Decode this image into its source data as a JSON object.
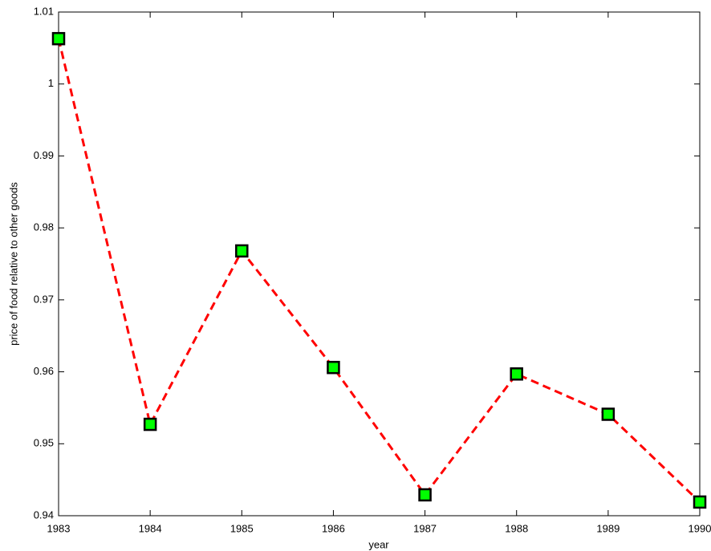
{
  "chart_data": {
    "type": "line",
    "xlabel": "year",
    "ylabel": "price of food relative to other goods",
    "x": [
      1983,
      1984,
      1985,
      1986,
      1987,
      1988,
      1989,
      1990
    ],
    "series": [
      {
        "color": "#ff0000",
        "marker_color": "#00ff00",
        "values": [
          1.0063,
          0.9527,
          0.9768,
          0.9606,
          0.9429,
          0.9597,
          0.9541,
          0.9419
        ]
      }
    ],
    "xlim": [
      1983,
      1990
    ],
    "xticks": [
      1983,
      1984,
      1985,
      1986,
      1987,
      1988,
      1989,
      1990
    ],
    "ylim": [
      0.94,
      1.01
    ],
    "yticks": [
      0.94,
      0.95,
      0.96,
      0.97,
      0.98,
      0.99,
      1,
      1.01
    ]
  }
}
